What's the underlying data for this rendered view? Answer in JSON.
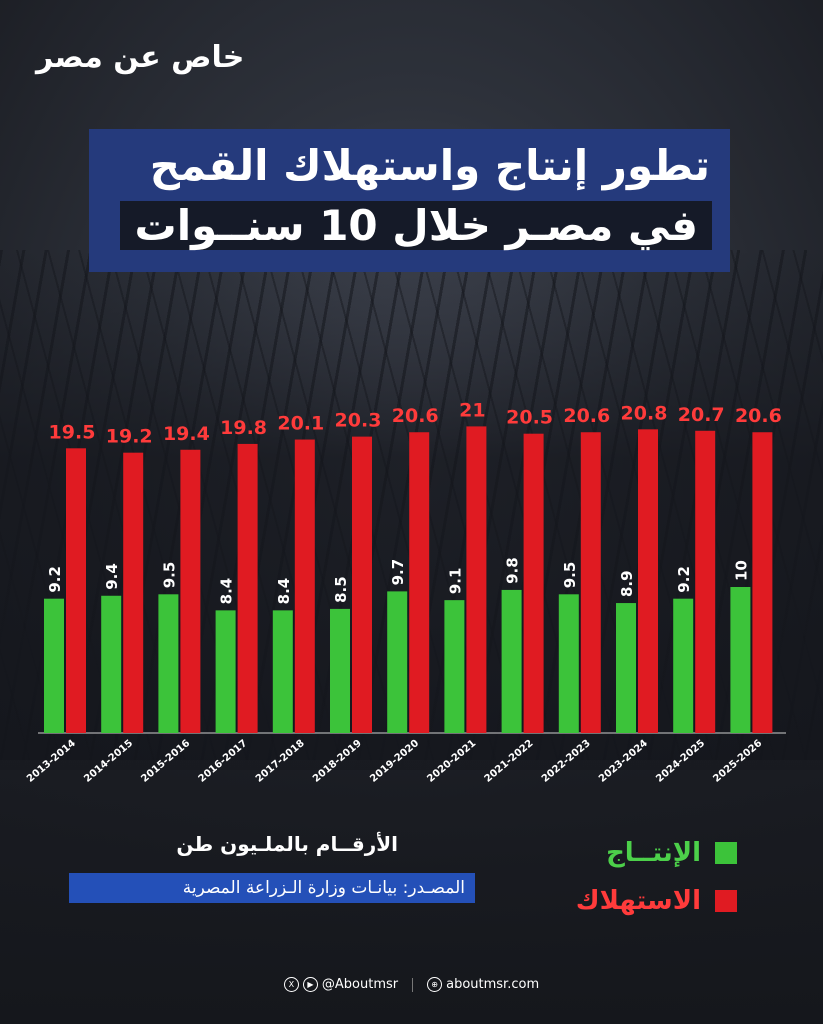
{
  "brand": {
    "logo_text": "خاص عن مصر"
  },
  "title": {
    "line1": "تطور إنتاج واستهلاك القمح",
    "line2": "في مصـر خلال 10 سنــوات"
  },
  "legend": {
    "production_label": "الإنتــاج",
    "consumption_label": "الاستهلاك"
  },
  "notes": {
    "unit": "الأرقــام بالملـيون طن",
    "source": "المصـدر: بيانـات وزارة الـزراعة المصرية"
  },
  "footer": {
    "social_handle": "@Aboutmsr",
    "website": "aboutmsr.com"
  },
  "colors": {
    "production": "#3cc33a",
    "consumption": "#e01b22",
    "production_label": "#4cd04a",
    "consumption_label": "#ff3b3b"
  },
  "chart_data": {
    "type": "bar",
    "categories": [
      "2013-2014",
      "2014-2015",
      "2015-2016",
      "2016-2017",
      "2017-2018",
      "2018-2019",
      "2019-2020",
      "2020-2021",
      "2021-2022",
      "2022-2023",
      "2023-2024",
      "2024-2025",
      "2025-2026"
    ],
    "series": [
      {
        "name": "الإنتــاج",
        "values": [
          9.2,
          9.4,
          9.5,
          8.4,
          8.4,
          8.5,
          9.7,
          9.1,
          9.8,
          9.5,
          8.9,
          9.2,
          10
        ]
      },
      {
        "name": "الاستهلاك",
        "values": [
          19.5,
          19.2,
          19.4,
          19.8,
          20.1,
          20.3,
          20.6,
          21,
          20.5,
          20.6,
          20.8,
          20.7,
          20.6
        ]
      }
    ],
    "data_labels": true,
    "grid": false
  }
}
